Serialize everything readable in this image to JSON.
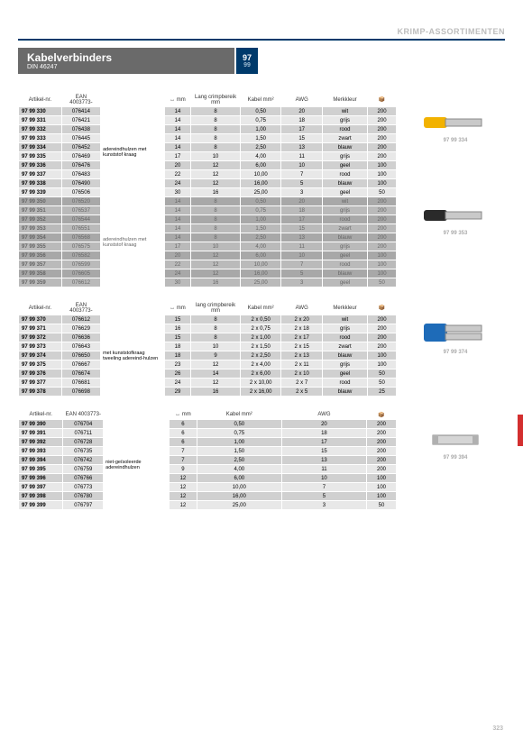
{
  "catHeader": "KRIMP-ASSORTIMENTEN",
  "title": "Kabelverbinders",
  "subtitle": "DIN 46247",
  "badge1": "97",
  "badge2": "99",
  "pageNumber": "323",
  "colors": {
    "accent": "#003a6b",
    "titlebg": "#6a6a6a",
    "redtab": "#d32f2f"
  },
  "table1": {
    "headers": [
      "Artikel-nr.",
      "EAN 4003773-",
      "",
      "↔ mm",
      "Lang crimpbereik mm",
      "Kabel mm²",
      "AWG",
      "Merkkleur",
      "📦"
    ],
    "desc": "adereindhulzen met kunststof kraag",
    "rows": [
      [
        "97 99 330",
        "076414",
        "14",
        "8",
        "0,50",
        "20",
        "wit",
        "200"
      ],
      [
        "97 99 331",
        "076421",
        "14",
        "8",
        "0,75",
        "18",
        "grijs",
        "200"
      ],
      [
        "97 99 332",
        "076438",
        "14",
        "8",
        "1,00",
        "17",
        "rood",
        "200"
      ],
      [
        "97 99 333",
        "076445",
        "14",
        "8",
        "1,50",
        "15",
        "zwart",
        "200"
      ],
      [
        "97 99 334",
        "076452",
        "14",
        "8",
        "2,50",
        "13",
        "blauw",
        "200"
      ],
      [
        "97 99 335",
        "076469",
        "17",
        "10",
        "4,00",
        "11",
        "grijs",
        "200"
      ],
      [
        "97 99 336",
        "076476",
        "20",
        "12",
        "6,00",
        "10",
        "geel",
        "100"
      ],
      [
        "97 99 337",
        "076483",
        "22",
        "12",
        "10,00",
        "7",
        "rood",
        "100"
      ],
      [
        "97 99 338",
        "076490",
        "24",
        "12",
        "16,00",
        "5",
        "blauw",
        "100"
      ],
      [
        "97 99 339",
        "076506",
        "30",
        "16",
        "25,00",
        "3",
        "geel",
        "50"
      ]
    ],
    "desc2": "adereindhulzen met kunststof kraag",
    "rows2": [
      [
        "97 99 350",
        "076520",
        "14",
        "8",
        "0,50",
        "20",
        "wit",
        "200"
      ],
      [
        "97 99 351",
        "076537",
        "14",
        "8",
        "0,75",
        "18",
        "grijs",
        "200"
      ],
      [
        "97 99 352",
        "076544",
        "14",
        "8",
        "1,00",
        "17",
        "rood",
        "200"
      ],
      [
        "97 99 353",
        "076551",
        "14",
        "8",
        "1,50",
        "15",
        "zwart",
        "200"
      ],
      [
        "97 99 354",
        "076568",
        "14",
        "8",
        "2,50",
        "13",
        "blauw",
        "200"
      ],
      [
        "97 99 355",
        "076575",
        "17",
        "10",
        "4,00",
        "11",
        "grijs",
        "200"
      ],
      [
        "97 99 356",
        "076582",
        "20",
        "12",
        "6,00",
        "10",
        "geel",
        "100"
      ],
      [
        "97 99 357",
        "076599",
        "22",
        "12",
        "10,00",
        "7",
        "rood",
        "100"
      ],
      [
        "97 99 358",
        "076605",
        "24",
        "12",
        "16,00",
        "5",
        "blauw",
        "100"
      ],
      [
        "97 99 359",
        "076612",
        "30",
        "16",
        "25,00",
        "3",
        "geel",
        "50"
      ]
    ],
    "img1_label": "97 99 334",
    "img2_label": "97 99 353"
  },
  "table2": {
    "headers": [
      "Artikel-nr.",
      "EAN 4003773-",
      "",
      "↔ mm",
      "lang crimpbereik mm",
      "Kabel mm²",
      "AWG",
      "Merkkleur",
      "📦"
    ],
    "desc": "met kunststofkraag tweeling adereind-hulzen",
    "rows": [
      [
        "97 99 370",
        "076612",
        "15",
        "8",
        "2 x 0,50",
        "2 x 20",
        "wit",
        "200"
      ],
      [
        "97 99 371",
        "076629",
        "16",
        "8",
        "2 x 0,75",
        "2 x 18",
        "grijs",
        "200"
      ],
      [
        "97 99 372",
        "076636",
        "15",
        "8",
        "2 x 1,00",
        "2 x 17",
        "rood",
        "200"
      ],
      [
        "97 99 373",
        "076643",
        "18",
        "10",
        "2 x 1,50",
        "2 x 15",
        "zwart",
        "200"
      ],
      [
        "97 99 374",
        "076650",
        "18",
        "9",
        "2 x 2,50",
        "2 x 13",
        "blauw",
        "100"
      ],
      [
        "97 99 375",
        "076667",
        "23",
        "12",
        "2 x 4,00",
        "2 x 11",
        "grijs",
        "100"
      ],
      [
        "97 99 376",
        "076674",
        "26",
        "14",
        "2 x 6,00",
        "2 x 10",
        "geel",
        "50"
      ],
      [
        "97 99 377",
        "076681",
        "24",
        "12",
        "2 x 10,00",
        "2 x 7",
        "rood",
        "50"
      ],
      [
        "97 99 378",
        "076698",
        "29",
        "16",
        "2 x 16,00",
        "2 x 5",
        "blauw",
        "25"
      ]
    ],
    "img_label": "97 99 374"
  },
  "table3": {
    "headers": [
      "Artikel-nr.",
      "EAN 4003773-",
      "",
      "↔ mm",
      "Kabel mm²",
      "AWG",
      "📦"
    ],
    "desc": "niet-geïsoleerde adereindhulzen",
    "rows": [
      [
        "97 99 390",
        "076704",
        "6",
        "0,50",
        "20",
        "200"
      ],
      [
        "97 99 391",
        "076711",
        "6",
        "0,75",
        "18",
        "200"
      ],
      [
        "97 99 392",
        "076728",
        "6",
        "1,00",
        "17",
        "200"
      ],
      [
        "97 99 393",
        "076735",
        "7",
        "1,50",
        "15",
        "200"
      ],
      [
        "97 99 394",
        "076742",
        "7",
        "2,50",
        "13",
        "200"
      ],
      [
        "97 99 395",
        "076759",
        "9",
        "4,00",
        "11",
        "200"
      ],
      [
        "97 99 396",
        "076766",
        "12",
        "6,00",
        "10",
        "100"
      ],
      [
        "97 99 397",
        "076773",
        "12",
        "10,00",
        "7",
        "100"
      ],
      [
        "97 99 398",
        "076780",
        "12",
        "16,00",
        "5",
        "100"
      ],
      [
        "97 99 399",
        "076797",
        "12",
        "25,00",
        "3",
        "50"
      ]
    ],
    "img_label": "97 99 394"
  }
}
